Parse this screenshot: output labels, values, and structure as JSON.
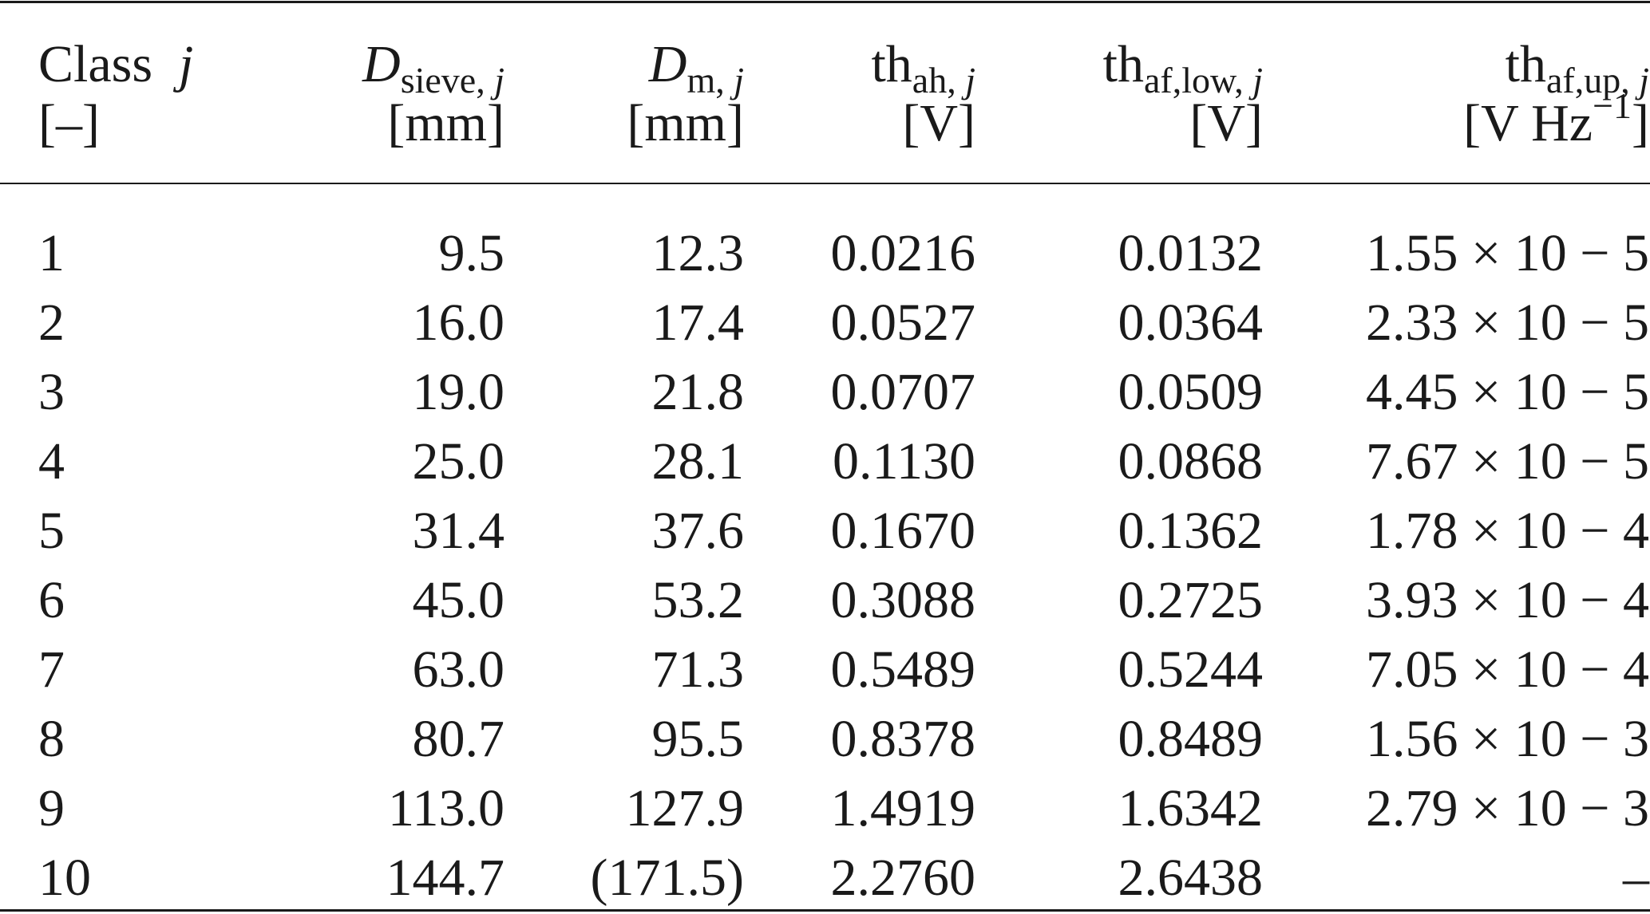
{
  "columns": [
    {
      "main": "Class",
      "italic": "j",
      "sub": "",
      "unit": "[–]",
      "align": "left"
    },
    {
      "main": "",
      "italic": "D",
      "sub": "sieve,",
      "subItalic": "j",
      "unit": "[mm]",
      "align": "right"
    },
    {
      "main": "",
      "italic": "D",
      "sub": "m,",
      "subItalic": "j",
      "unit": "[mm]",
      "align": "right"
    },
    {
      "main": "th",
      "italic": "",
      "sub": "ah,",
      "subItalic": "j",
      "unit": "[V]",
      "align": "right"
    },
    {
      "main": "th",
      "italic": "",
      "sub": "af,low,",
      "subItalic": "j",
      "unit": "[V]",
      "align": "right"
    },
    {
      "main": "th",
      "italic": "",
      "sub": "af,up,",
      "subItalic": "j",
      "unit_base": "[V Hz",
      "unit_sup": "−1",
      "unit_end": "]",
      "align": "right"
    }
  ],
  "rows": [
    [
      "1",
      "9.5",
      "12.3",
      "0.0216",
      "0.0132",
      "1.55 × 10 − 5"
    ],
    [
      "2",
      "16.0",
      "17.4",
      "0.0527",
      "0.0364",
      "2.33 × 10 − 5"
    ],
    [
      "3",
      "19.0",
      "21.8",
      "0.0707",
      "0.0509",
      "4.45 × 10 − 5"
    ],
    [
      "4",
      "25.0",
      "28.1",
      "0.1130",
      "0.0868",
      "7.67 × 10 − 5"
    ],
    [
      "5",
      "31.4",
      "37.6",
      "0.1670",
      "0.1362",
      "1.78 × 10 − 4"
    ],
    [
      "6",
      "45.0",
      "53.2",
      "0.3088",
      "0.2725",
      "3.93 × 10 − 4"
    ],
    [
      "7",
      "63.0",
      "71.3",
      "0.5489",
      "0.5244",
      "7.05 × 10 − 4"
    ],
    [
      "8",
      "80.7",
      "95.5",
      "0.8378",
      "0.8489",
      "1.56 × 10 − 3"
    ],
    [
      "9",
      "113.0",
      "127.9",
      "1.4919",
      "1.6342",
      "2.79 × 10 − 3"
    ],
    [
      "10",
      "144.7",
      "(171.5)",
      "2.2760",
      "2.6438",
      "–"
    ]
  ]
}
